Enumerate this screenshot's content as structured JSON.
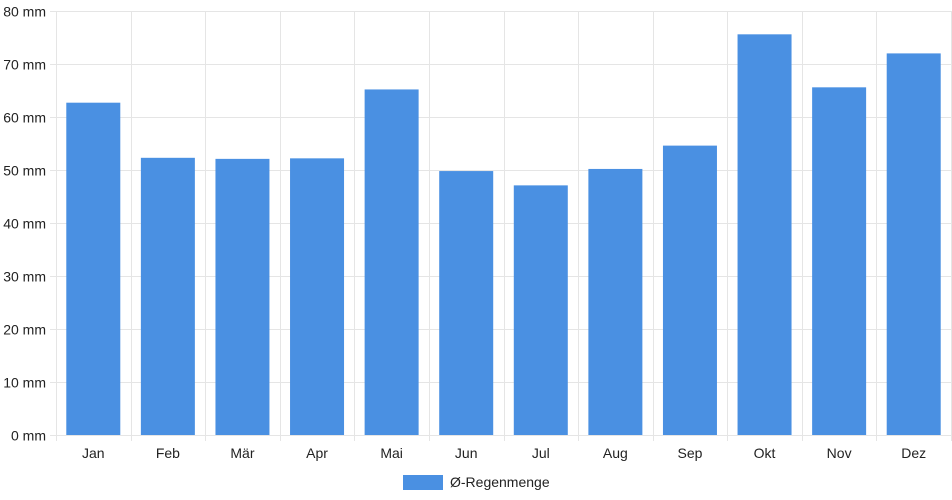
{
  "chart_data": {
    "type": "bar",
    "categories": [
      "Jan",
      "Feb",
      "Mär",
      "Apr",
      "Mai",
      "Jun",
      "Jul",
      "Aug",
      "Sep",
      "Okt",
      "Nov",
      "Dez"
    ],
    "series": [
      {
        "name": "Ø-Regenmenge",
        "values": [
          62.7,
          52.3,
          52.1,
          52.2,
          65.2,
          49.8,
          47.1,
          50.2,
          54.6,
          75.6,
          65.6,
          72.0
        ],
        "color": "#4a90e2"
      }
    ],
    "y_ticks": [
      "0 mm",
      "10 mm",
      "20 mm",
      "30 mm",
      "40 mm",
      "50 mm",
      "60 mm",
      "70 mm",
      "80 mm"
    ],
    "ylim": [
      0,
      80
    ],
    "y_step": 10,
    "grid": true,
    "legend_position": "bottom-center",
    "grid_color": "#e5e5e5"
  }
}
